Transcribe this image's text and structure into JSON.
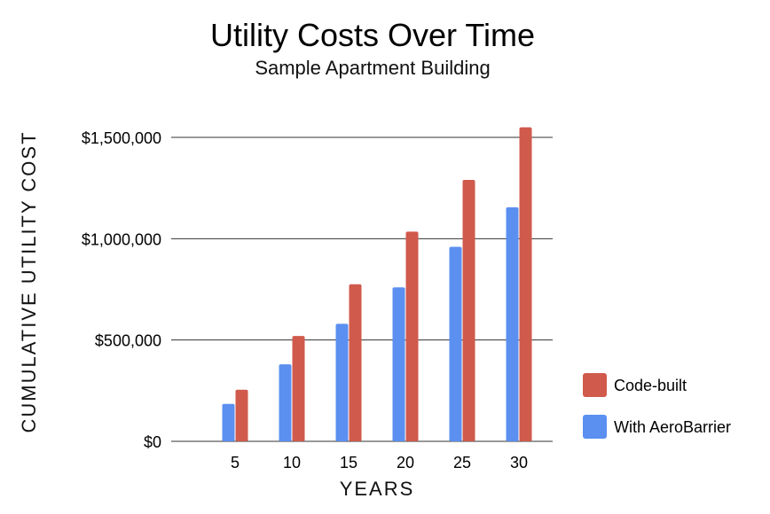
{
  "chart_data": {
    "type": "bar",
    "title": "Utility Costs Over Time",
    "subtitle": "Sample Apartment Building",
    "xlabel": "YEARS",
    "ylabel": "CUMULATIVE  UTILITY  COST",
    "categories": [
      "5",
      "10",
      "15",
      "20",
      "25",
      "30"
    ],
    "series": [
      {
        "name": "With AeroBarrier",
        "color": "#5B8FF0",
        "values": [
          185000,
          380000,
          580000,
          760000,
          960000,
          1155000
        ]
      },
      {
        "name": "Code-built",
        "color": "#D05A4C",
        "values": [
          255000,
          520000,
          775000,
          1035000,
          1290000,
          1550000
        ]
      }
    ],
    "ylim": [
      0,
      1500000
    ],
    "yticks": [
      0,
      500000,
      1000000,
      1500000
    ],
    "ytick_labels": [
      "$0",
      "$500,000",
      "$1,000,000",
      "$1,500,000"
    ],
    "grid": true,
    "legend": {
      "position": "right",
      "items": [
        {
          "label": "Code-built",
          "color": "#D05A4C"
        },
        {
          "label": "With AeroBarrier",
          "color": "#5B8FF0"
        }
      ]
    }
  }
}
